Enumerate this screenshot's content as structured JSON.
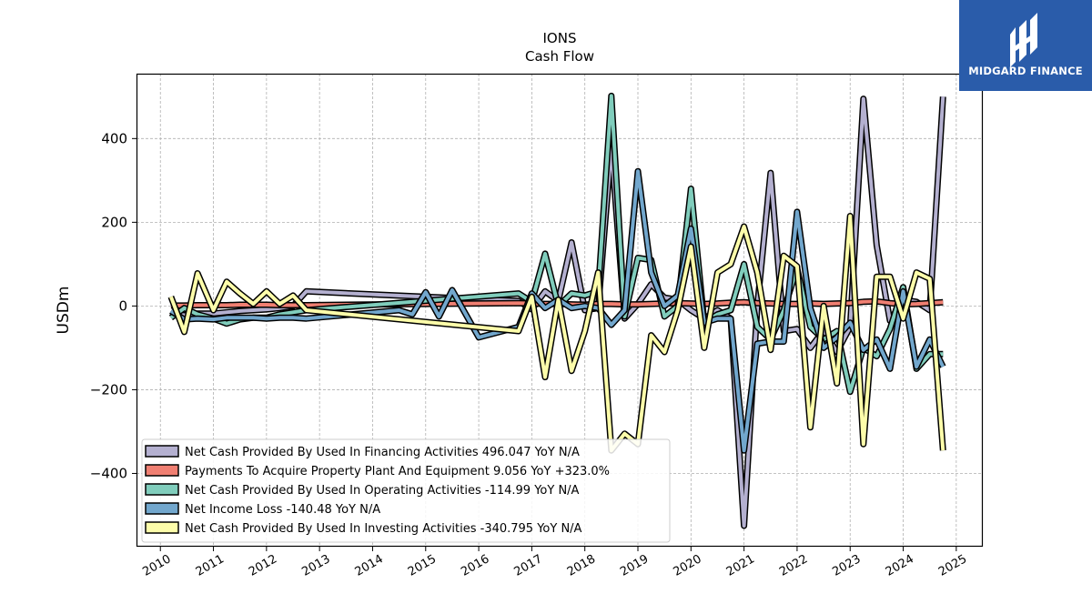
{
  "brand": {
    "name": "MIDGARD FINANCE",
    "background": "#2a5caa"
  },
  "chart_data": {
    "type": "line",
    "title": "IONS",
    "subtitle": "Cash Flow",
    "xlabel": "",
    "ylabel": "USDm",
    "xlim": [
      2009.55,
      2025.5
    ],
    "ylim": [
      -575,
      555
    ],
    "x_ticks": [
      2010,
      2011,
      2012,
      2013,
      2014,
      2015,
      2016,
      2017,
      2018,
      2019,
      2020,
      2021,
      2022,
      2023,
      2024,
      2025
    ],
    "y_ticks": [
      400,
      200,
      0,
      -200,
      -400
    ],
    "y_tick_labels": [
      "400",
      "200",
      "0",
      "−200",
      "−400"
    ],
    "grid": true,
    "legend_position": "lower-left",
    "series": [
      {
        "name": "Net Cash Provided By Used In Financing Activities",
        "legend": "Net Cash Provided By Used In Financing Activities  496.047 YoY N/A",
        "color": "#b4b0d0",
        "x": [
          2010.2,
          2010.45,
          2010.7,
          2011.0,
          2011.25,
          2011.5,
          2011.75,
          2012.0,
          2012.25,
          2012.5,
          2012.75,
          2016.75,
          2017.0,
          2017.25,
          2017.5,
          2017.75,
          2018.0,
          2018.25,
          2018.5,
          2018.75,
          2019.0,
          2019.25,
          2019.5,
          2019.75,
          2020.0,
          2020.25,
          2020.5,
          2020.75,
          2021.0,
          2021.25,
          2021.5,
          2021.75,
          2022.0,
          2022.25,
          2022.5,
          2022.75,
          2023.0,
          2023.25,
          2023.5,
          2023.75,
          2024.0,
          2024.25,
          2024.5,
          2024.75
        ],
        "y": [
          -18,
          -22,
          -18,
          -18,
          -15,
          -12,
          -10,
          -8,
          -5,
          0,
          35,
          12,
          -8,
          35,
          12,
          152,
          -10,
          -5,
          380,
          -30,
          5,
          52,
          20,
          15,
          -10,
          -30,
          -10,
          -30,
          -525,
          0,
          318,
          -60,
          -55,
          -100,
          -58,
          -110,
          -50,
          495,
          145,
          -35,
          15,
          10,
          -10,
          500
        ]
      },
      {
        "name": "Payments To Acquire Property Plant And Equipment",
        "legend": "Payments To Acquire Property Plant And Equipment  9.056 YoY +323.0%",
        "color": "#f07f72",
        "x": [
          2010.2,
          2010.45,
          2010.7,
          2011.0,
          2011.25,
          2011.5,
          2011.75,
          2012.0,
          2012.25,
          2012.5,
          2012.75,
          2016.75,
          2017.0,
          2017.25,
          2017.5,
          2017.75,
          2018.0,
          2018.25,
          2018.5,
          2018.75,
          2019.0,
          2019.25,
          2019.5,
          2019.75,
          2020.0,
          2020.25,
          2020.5,
          2020.75,
          2021.0,
          2021.25,
          2021.5,
          2021.75,
          2022.0,
          2022.25,
          2022.5,
          2022.75,
          2023.0,
          2023.25,
          2023.5,
          2023.75,
          2024.0,
          2024.25,
          2024.5,
          2024.75
        ],
        "y": [
          1,
          1,
          2,
          2,
          2,
          3,
          3,
          3,
          2,
          2,
          2,
          7,
          6,
          5,
          5,
          4,
          3,
          5,
          5,
          4,
          4,
          5,
          6,
          7,
          6,
          5,
          6,
          8,
          9,
          7,
          6,
          5,
          5,
          6,
          5,
          6,
          7,
          10,
          11,
          7,
          4,
          5,
          7,
          9
        ]
      },
      {
        "name": "Net Cash Provided By Used In Operating Activities",
        "legend": "Net Cash Provided By Used In Operating Activities  -114.99 YoY N/A",
        "color": "#80cdbc",
        "x": [
          2010.2,
          2010.45,
          2010.7,
          2011.0,
          2011.25,
          2011.5,
          2011.75,
          2012.0,
          2012.25,
          2012.5,
          2012.75,
          2016.75,
          2017.0,
          2017.25,
          2017.5,
          2017.75,
          2018.0,
          2018.25,
          2018.5,
          2018.75,
          2019.0,
          2019.25,
          2019.5,
          2019.75,
          2020.0,
          2020.25,
          2020.5,
          2020.75,
          2021.0,
          2021.25,
          2021.5,
          2021.75,
          2022.0,
          2022.25,
          2022.5,
          2022.75,
          2023.0,
          2023.25,
          2023.5,
          2023.75,
          2024.0,
          2024.25,
          2024.5,
          2024.75
        ],
        "y": [
          -28,
          -5,
          -20,
          -30,
          -42,
          -32,
          -28,
          -28,
          -20,
          -15,
          -10,
          30,
          10,
          125,
          0,
          30,
          25,
          35,
          502,
          -25,
          115,
          110,
          -25,
          0,
          280,
          -40,
          -20,
          -10,
          100,
          -50,
          -80,
          -10,
          90,
          -50,
          -80,
          -60,
          -205,
          -100,
          -120,
          -55,
          45,
          -150,
          -115,
          -115
        ]
      },
      {
        "name": "Net Income Loss",
        "legend": "Net Income Loss  -140.48 YoY N/A",
        "color": "#72a7cd",
        "x": [
          2010.2,
          2010.45,
          2010.7,
          2011.0,
          2011.25,
          2011.5,
          2011.75,
          2012.0,
          2012.25,
          2012.5,
          2012.75,
          2014.5,
          2014.75,
          2015.0,
          2015.25,
          2015.5,
          2016.0,
          2016.75,
          2017.0,
          2017.25,
          2017.5,
          2017.75,
          2018.0,
          2018.25,
          2018.5,
          2018.75,
          2019.0,
          2019.25,
          2019.5,
          2019.75,
          2020.0,
          2020.25,
          2020.5,
          2020.75,
          2021.0,
          2021.25,
          2021.5,
          2021.75,
          2022.0,
          2022.25,
          2022.5,
          2022.75,
          2023.0,
          2023.25,
          2023.5,
          2023.75,
          2024.0,
          2024.25,
          2024.5,
          2024.75
        ],
        "y": [
          -12,
          -32,
          -30,
          -32,
          -28,
          -28,
          -28,
          -30,
          -28,
          -28,
          -30,
          -10,
          -20,
          33,
          -25,
          38,
          -75,
          -50,
          30,
          -5,
          15,
          -5,
          0,
          -5,
          -45,
          -10,
          322,
          80,
          0,
          25,
          185,
          -40,
          -30,
          -30,
          -345,
          -90,
          -85,
          -85,
          225,
          -5,
          -100,
          -75,
          -40,
          -105,
          -80,
          -150,
          35,
          -145,
          -80,
          -145
        ]
      },
      {
        "name": "Net Cash Provided By Used In Investing Activities",
        "legend": "Net Cash Provided By Used In Investing Activities  -340.795 YoY N/A",
        "color": "#fdfdaa",
        "x": [
          2010.2,
          2010.45,
          2010.7,
          2011.0,
          2011.25,
          2011.5,
          2011.75,
          2012.0,
          2012.25,
          2012.5,
          2012.75,
          2016.75,
          2017.0,
          2017.25,
          2017.5,
          2017.75,
          2018.0,
          2018.25,
          2018.5,
          2018.75,
          2019.0,
          2019.25,
          2019.5,
          2019.75,
          2020.0,
          2020.25,
          2020.5,
          2020.75,
          2021.0,
          2021.25,
          2021.5,
          2021.75,
          2022.0,
          2022.25,
          2022.5,
          2022.75,
          2023.0,
          2023.25,
          2023.5,
          2023.75,
          2024.0,
          2024.25,
          2024.5,
          2024.75
        ],
        "y": [
          22,
          -62,
          78,
          -10,
          58,
          30,
          5,
          35,
          5,
          25,
          -10,
          -60,
          22,
          -170,
          15,
          -155,
          -60,
          80,
          -345,
          -305,
          -330,
          -70,
          -110,
          -10,
          142,
          -100,
          80,
          100,
          190,
          80,
          -105,
          120,
          95,
          -290,
          0,
          -185,
          215,
          -330,
          70,
          70,
          -30,
          80,
          65,
          -345
        ]
      }
    ]
  }
}
